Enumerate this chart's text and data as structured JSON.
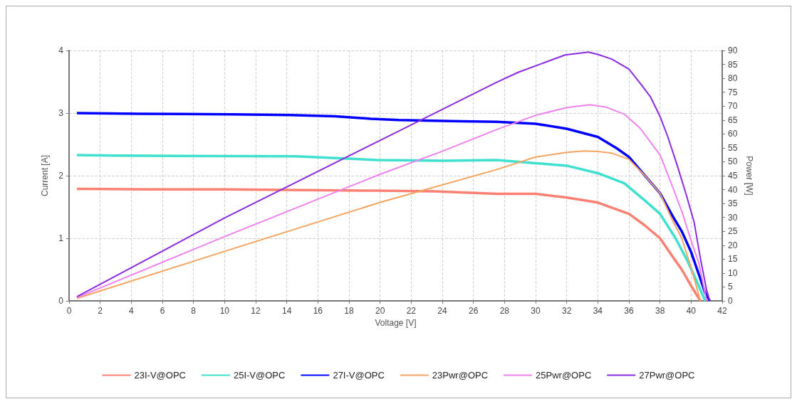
{
  "chart_data": {
    "type": "line",
    "xlabel": "Voltage [V]",
    "ylabel": "Current [A]",
    "y2label": "Power [W]",
    "xlim": [
      0,
      42
    ],
    "xticks": [
      0,
      2,
      4,
      6,
      8,
      10,
      12,
      14,
      16,
      18,
      20,
      22,
      24,
      26,
      28,
      30,
      32,
      34,
      36,
      38,
      40,
      42
    ],
    "ylim": [
      0,
      4
    ],
    "yticks": [
      0,
      1,
      2,
      3,
      4
    ],
    "y2lim": [
      0,
      90
    ],
    "y2ticks": [
      0,
      5,
      10,
      15,
      20,
      25,
      30,
      35,
      40,
      45,
      50,
      55,
      60,
      65,
      70,
      75,
      80,
      85,
      90
    ],
    "grid": true,
    "legend": "bottom",
    "marker": "none",
    "line_style": "solid",
    "series": [
      {
        "name": "23I-V@OPC",
        "color": "#fa8072",
        "x": [
          0.5,
          5.3,
          10,
          19.6,
          23.5,
          27.5,
          30,
          32,
          34,
          36,
          37,
          38,
          38.8,
          39.4,
          40,
          40.6
        ],
        "values": [
          1.79,
          1.78,
          1.78,
          1.76,
          1.75,
          1.71,
          1.71,
          1.65,
          1.57,
          1.39,
          1.21,
          1.0,
          0.71,
          0.5,
          0.24,
          0
        ]
      },
      {
        "name": "25I-V@OPC",
        "color": "#40e0d0",
        "x": [
          0.5,
          3,
          14.6,
          19.8,
          24.1,
          27.5,
          30,
          32,
          34,
          35.7,
          37,
          38,
          39,
          39.7,
          40.3,
          40.9
        ],
        "values": [
          2.33,
          2.32,
          2.31,
          2.25,
          2.24,
          2.25,
          2.2,
          2.16,
          2.04,
          1.88,
          1.61,
          1.39,
          1.0,
          0.67,
          0.35,
          0
        ]
      },
      {
        "name": "27I-V@OPC",
        "color": "#0000ff",
        "x": [
          0.5,
          4.6,
          10.4,
          14.2,
          17.1,
          19.4,
          21.2,
          25.2,
          27.5,
          30,
          32,
          34,
          35.2,
          36,
          37,
          38,
          38.8,
          39.4,
          40,
          40.5,
          40.9,
          41.2
        ],
        "values": [
          3.0,
          2.99,
          2.98,
          2.97,
          2.95,
          2.91,
          2.89,
          2.87,
          2.86,
          2.83,
          2.75,
          2.62,
          2.44,
          2.3,
          2.01,
          1.72,
          1.36,
          1.11,
          0.78,
          0.42,
          0.13,
          0
        ]
      },
      {
        "name": "23Pwr@OPC",
        "color": "#f4a460",
        "axis": "y2",
        "x": [
          0.5,
          10,
          20,
          27.5,
          30,
          32,
          33.1,
          34,
          34.9,
          36,
          37,
          38,
          38.8,
          39.4,
          40,
          40.6
        ],
        "values": [
          0.9,
          17.8,
          35.4,
          47.2,
          51.7,
          53.4,
          53.9,
          53.7,
          53.1,
          50.9,
          45.2,
          38.7,
          29,
          22.5,
          11.9,
          0
        ]
      },
      {
        "name": "25Pwr@OPC",
        "color": "#ee82ee",
        "axis": "y2",
        "x": [
          0.5,
          10,
          20,
          24,
          27.5,
          30,
          32,
          33.5,
          34.5,
          35.7,
          36.7,
          38,
          38.8,
          39.4,
          40,
          40.5,
          41
        ],
        "values": [
          1.2,
          23.1,
          45.5,
          53.8,
          61.6,
          66.7,
          69.5,
          70.5,
          69.7,
          67.1,
          62.2,
          52.5,
          41.1,
          32.2,
          21.7,
          13.5,
          0
        ]
      },
      {
        "name": "27Pwr@OPC",
        "color": "#8a2be2",
        "axis": "y2",
        "x": [
          0.5,
          10,
          20,
          27.5,
          28.9,
          30.4,
          31.9,
          33.4,
          34,
          34.9,
          36,
          36.7,
          37.4,
          38,
          38.5,
          39.1,
          39.7,
          40.2,
          40.6,
          41,
          41.2
        ],
        "values": [
          1.5,
          29.8,
          57.7,
          78.6,
          82.2,
          85.3,
          88.4,
          89.4,
          88.6,
          86.9,
          83.3,
          78.4,
          73.2,
          66.3,
          59,
          48.8,
          37.9,
          28.1,
          15.2,
          3.8,
          0
        ]
      }
    ]
  }
}
